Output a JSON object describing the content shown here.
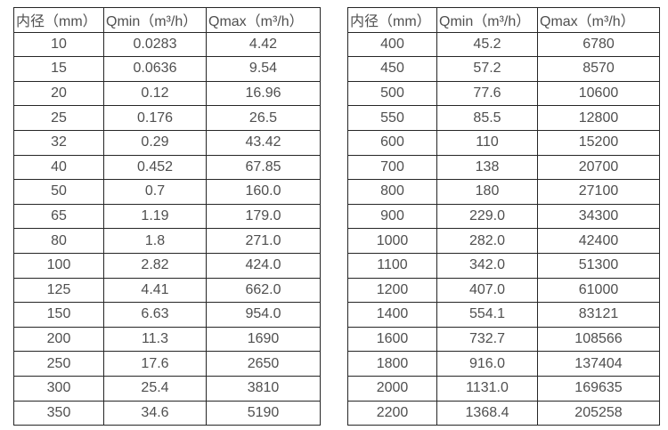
{
  "page": {
    "background_color": "#ffffff",
    "border_color": "#262626",
    "text_color": "#4f4f4f"
  },
  "tables": [
    {
      "name": "flow-table-dn10-350",
      "headers": [
        "内径（mm）",
        "Qmin（m³/h）",
        "Qmax（m³/h）"
      ],
      "rows": [
        [
          "10",
          "0.0283",
          "4.42"
        ],
        [
          "15",
          "0.0636",
          "9.54"
        ],
        [
          "20",
          "0.12",
          "16.96"
        ],
        [
          "25",
          "0.176",
          "26.5"
        ],
        [
          "32",
          "0.29",
          "43.42"
        ],
        [
          "40",
          "0.452",
          "67.85"
        ],
        [
          "50",
          "0.7",
          "160.0"
        ],
        [
          "65",
          "1.19",
          "179.0"
        ],
        [
          "80",
          "1.8",
          "271.0"
        ],
        [
          "100",
          "2.82",
          "424.0"
        ],
        [
          "125",
          "4.41",
          "662.0"
        ],
        [
          "150",
          "6.63",
          "954.0"
        ],
        [
          "200",
          "11.3",
          "1690"
        ],
        [
          "250",
          "17.6",
          "2650"
        ],
        [
          "300",
          "25.4",
          "3810"
        ],
        [
          "350",
          "34.6",
          "5190"
        ]
      ]
    },
    {
      "name": "flow-table-dn400-2200",
      "headers": [
        "内径（mm）",
        "Qmin（m³/h）",
        "Qmax（m³/h）"
      ],
      "rows": [
        [
          "400",
          "45.2",
          "6780"
        ],
        [
          "450",
          "57.2",
          "8570"
        ],
        [
          "500",
          "77.6",
          "10600"
        ],
        [
          "550",
          "85.5",
          "12800"
        ],
        [
          "600",
          "110",
          "15200"
        ],
        [
          "700",
          "138",
          "20700"
        ],
        [
          "800",
          "180",
          "27100"
        ],
        [
          "900",
          "229.0",
          "34300"
        ],
        [
          "1000",
          "282.0",
          "42400"
        ],
        [
          "1100",
          "342.0",
          "51300"
        ],
        [
          "1200",
          "407.0",
          "61000"
        ],
        [
          "1400",
          "554.1",
          "83121"
        ],
        [
          "1600",
          "732.7",
          "108566"
        ],
        [
          "1800",
          "916.0",
          "137404"
        ],
        [
          "2000",
          "1131.0",
          "169635"
        ],
        [
          "2200",
          "1368.4",
          "205258"
        ]
      ]
    }
  ]
}
